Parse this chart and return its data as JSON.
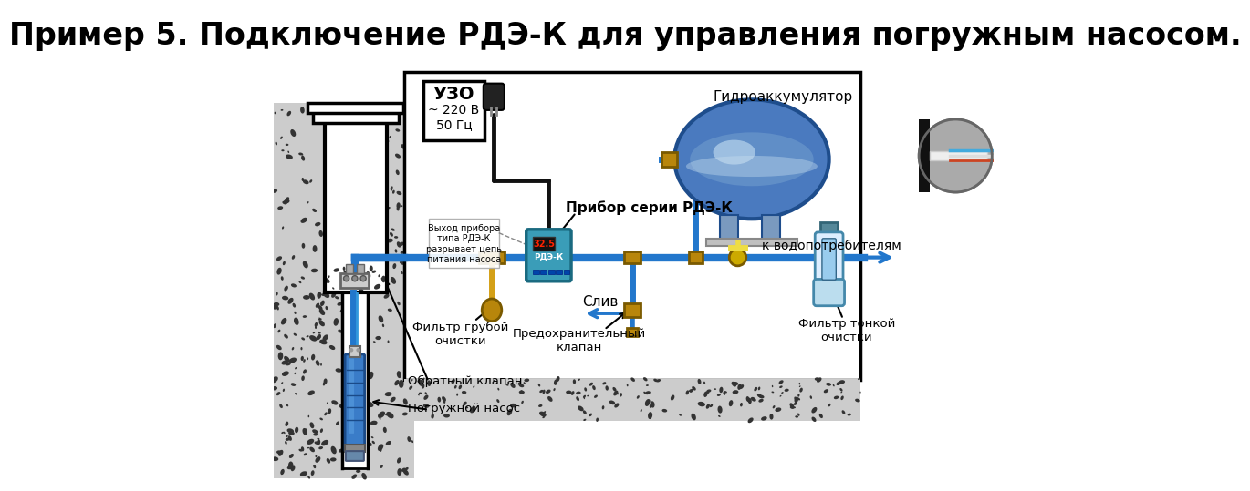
{
  "title": "Пример 5. Подключение РДЭ-К для управления погружным насосом.",
  "title_fontsize": 24,
  "title_fontweight": "bold",
  "bg_color": "#ffffff",
  "labels": {
    "uzo": "УЗО",
    "uzo_sub": "~ 220 В\n50 Гц",
    "pribor": "Прибор серии РДЭ-К",
    "gidro": "Гидроаккумулятор",
    "vyhod": "Выход прибора\nтипа РДЭ-К\nразрывает цепь\nпитания насоса",
    "filtr_grub": "Фильтр грубой\nочистки",
    "predohr": "Предохранительный\nклапан",
    "sliv": "Слив",
    "filtr_tonk": "Фильтр тонкой\nочистки",
    "k_vodo": "к водопотребителям",
    "obr_klapan": "Обратный клапан",
    "pogr_nasos": "Погружной насос"
  },
  "colors": {
    "pipe_blue": "#2277cc",
    "pipe_blue2": "#3399dd",
    "tank_main": "#4a7abf",
    "tank_light": "#8ab4d8",
    "tank_dark": "#1e4d8c",
    "tank_stripe": "#c8dff0",
    "rde_teal": "#3a9db8",
    "rde_dark": "#1a6a80",
    "filter_brass": "#b8860b",
    "filter_brass2": "#d4a017",
    "filter_fine_body": "#c8e0f0",
    "filter_fine_cap": "#90b8d0",
    "wire_black": "#111111",
    "pump_blue": "#3a7cc8",
    "pump_blue2": "#5599dd",
    "pump_dark": "#1a4a88",
    "soil_bg": "#cccccc",
    "soil_spot": "#333333",
    "concrete_bg": "#dddddd",
    "valve_yellow": "#ccaa00",
    "valve_yellow2": "#eedd44",
    "circle_bg": "#aaaaaa",
    "circle_bg2": "#bbbbbb"
  }
}
